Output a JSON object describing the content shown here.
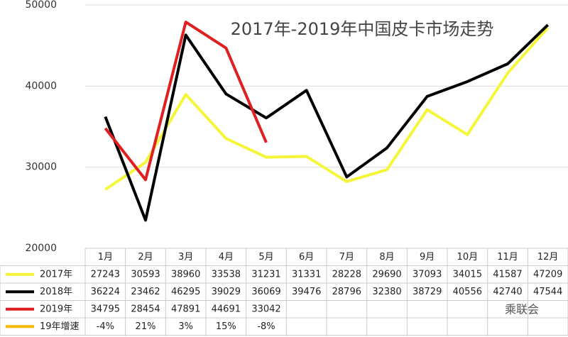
{
  "chart_data": {
    "type": "line",
    "title": "2017年-2019年中国皮卡市场走势",
    "categories": [
      "1月",
      "2月",
      "3月",
      "4月",
      "5月",
      "6月",
      "7月",
      "8月",
      "9月",
      "10月",
      "11月",
      "12月"
    ],
    "series": [
      {
        "name": "2017年",
        "color": "#f5f53a",
        "values": [
          27243,
          30593,
          38960,
          33538,
          31231,
          31331,
          28228,
          29690,
          37093,
          34015,
          41587,
          47209
        ]
      },
      {
        "name": "2018年",
        "color": "#000000",
        "values": [
          36224,
          23462,
          46295,
          39029,
          36069,
          39476,
          28796,
          32380,
          38729,
          40556,
          42740,
          47544
        ]
      },
      {
        "name": "2019年",
        "color": "#e02020",
        "values": [
          34795,
          28454,
          47891,
          44691,
          33042,
          null,
          null,
          null,
          null,
          null,
          null,
          null
        ]
      }
    ],
    "growth": {
      "name": "19年增速",
      "color": "#f5b800",
      "values": [
        -4,
        21,
        3,
        15,
        -8,
        null,
        null,
        null,
        null,
        null,
        null,
        null
      ],
      "value_labels": [
        "-4%",
        "21%",
        "3%",
        "15%",
        "-8%",
        null,
        null,
        null,
        null,
        null,
        null,
        null
      ]
    },
    "ylim": [
      20000,
      50000
    ],
    "yticks": [
      20000,
      30000,
      40000,
      50000
    ],
    "grid": true,
    "watermark": "乘联会"
  }
}
